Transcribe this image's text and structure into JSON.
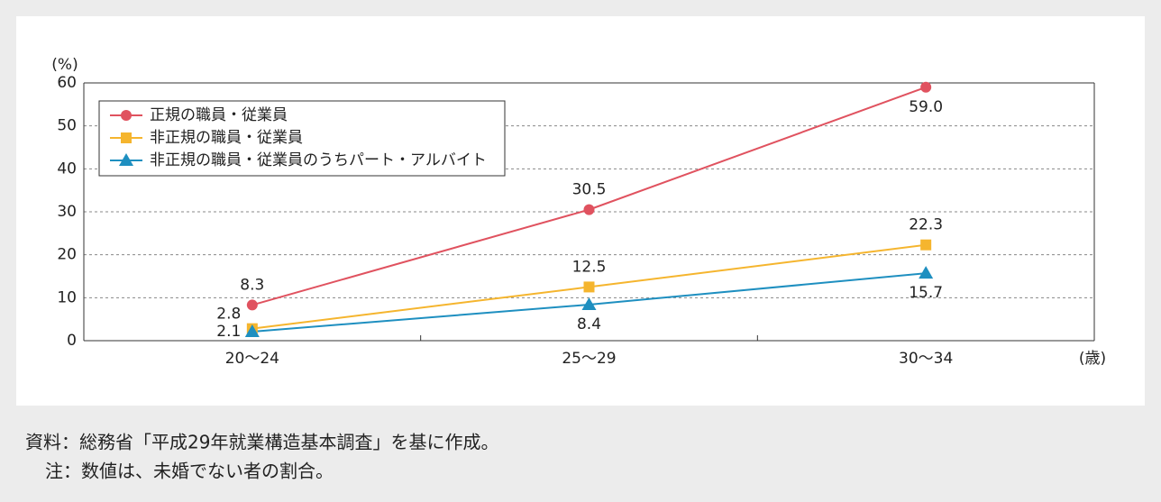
{
  "chart_data": {
    "type": "line",
    "y_unit": "(%)",
    "x_unit": "(歳)",
    "categories": [
      "20～24",
      "25～29",
      "30～34"
    ],
    "series": [
      {
        "name": "正規の職員・従業員",
        "color": "#e0525f",
        "marker": "circle",
        "values": [
          8.3,
          30.5,
          59.0
        ],
        "value_labels": [
          "8.3",
          "30.5",
          "59.0"
        ]
      },
      {
        "name": "非正規の職員・従業員",
        "color": "#f5b52e",
        "marker": "square",
        "values": [
          2.8,
          12.5,
          22.3
        ],
        "value_labels": [
          "2.8",
          "12.5",
          "22.3"
        ]
      },
      {
        "name": "非正規の職員・従業員のうちパート・アルバイト",
        "color": "#1e8fc0",
        "marker": "triangle",
        "values": [
          2.1,
          8.4,
          15.7
        ],
        "value_labels": [
          "2.1",
          "8.4",
          "15.7"
        ]
      }
    ],
    "ylim": [
      0,
      60
    ],
    "yticks": [
      0,
      10,
      20,
      30,
      40,
      50,
      60
    ],
    "grid": true,
    "legend": "top-left"
  },
  "notes": {
    "source": "資料：総務省「平成29年就業構造基本調査」を基に作成。",
    "note": "注：数値は、未婚でない者の割合。"
  }
}
